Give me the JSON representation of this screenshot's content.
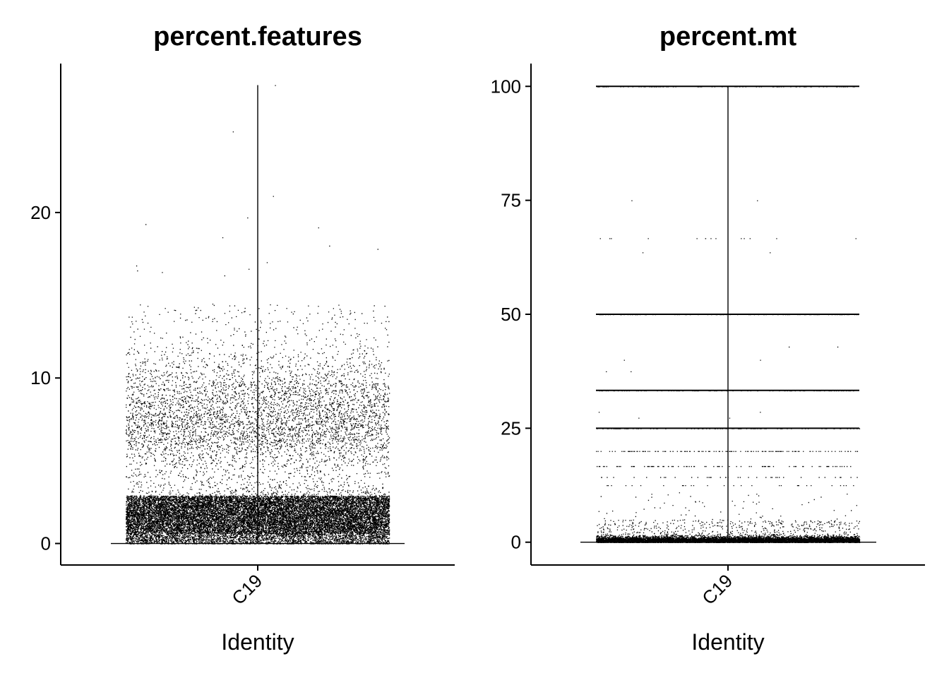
{
  "chart_data": [
    {
      "type": "scatter",
      "subtype": "violin-jitter",
      "title": "percent.features",
      "xlabel": "Identity",
      "ylabel": "",
      "categories": [
        "C19"
      ],
      "ylim": [
        -1.3,
        29.0
      ],
      "yticks": [
        0,
        10,
        20
      ],
      "grid": false,
      "legend": "none",
      "range_line": [
        0,
        27.7
      ],
      "distribution": {
        "dense_band": [
          0.6,
          2.9
        ],
        "upper_cluster_center": 7.5,
        "max": 27.7
      },
      "outliers": [
        27.7,
        24.9,
        21.0,
        19.7,
        19.3,
        19.1,
        18.5,
        18.0,
        17.8,
        17.0,
        16.8,
        16.6,
        16.5,
        16.4,
        16.2
      ]
    },
    {
      "type": "scatter",
      "subtype": "violin-jitter",
      "title": "percent.mt",
      "xlabel": "Identity",
      "ylabel": "",
      "categories": [
        "C19"
      ],
      "ylim": [
        -5,
        105
      ],
      "yticks": [
        0,
        25,
        50,
        75,
        100
      ],
      "grid": false,
      "legend": "none",
      "range_line": [
        0,
        100
      ],
      "discrete_levels": [
        100,
        50,
        33.3,
        25,
        20,
        16.7,
        14.3,
        12.5
      ],
      "distribution": {
        "dense_band": [
          0,
          2
        ],
        "max": 100
      },
      "outliers": [
        75,
        66.7,
        63.6,
        42.9,
        40,
        37.5,
        28.6,
        27.3
      ]
    }
  ]
}
